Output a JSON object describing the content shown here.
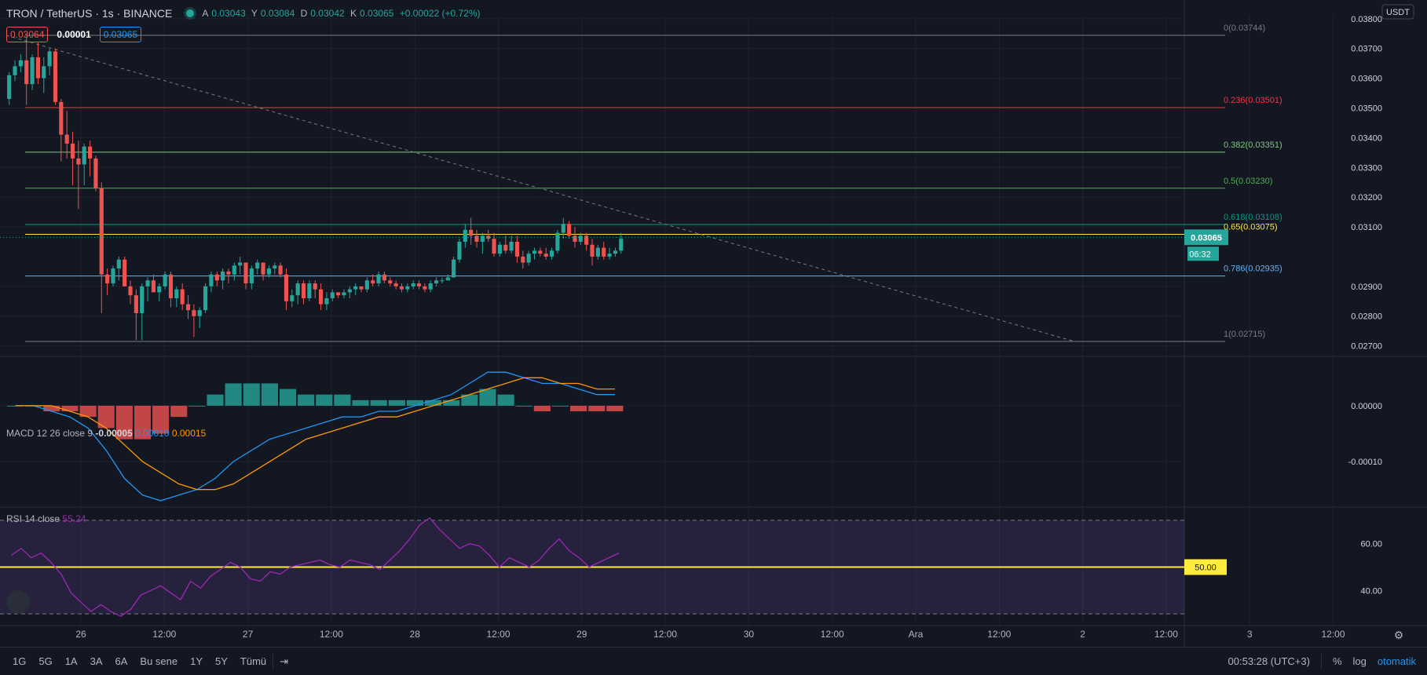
{
  "header": {
    "symbol": "TRON / TetherUS · 1s · BINANCE",
    "ohlc": {
      "o_label": "A",
      "o": "0.03043",
      "h_label": "Y",
      "h": "0.03084",
      "l_label": "D",
      "l": "0.03042",
      "c_label": "K",
      "c": "0.03065",
      "change": "+0.00022 (+0.72%)"
    },
    "sell": "0.03064",
    "spread": "0.00001",
    "buy": "0.03065"
  },
  "currency": "USDT",
  "last_price_label": "0.03065",
  "countdown": "06:32",
  "rsi_level_label": "50.00",
  "macd_header": {
    "name": "MACD 12 26 close 9",
    "v1": "-0.00005",
    "v2": "0.00010",
    "v3": "0.00015"
  },
  "rsi_header": {
    "name": "RSI 14 close",
    "v": "55.24"
  },
  "bottom_bar": {
    "ranges": [
      "1G",
      "5G",
      "1A",
      "3A",
      "6A",
      "Bu sene",
      "1Y",
      "5Y",
      "Tümü"
    ],
    "time": "00:53:28 (UTC+3)",
    "percent": "%",
    "log": "log",
    "auto": "otomatik"
  },
  "colors": {
    "up": "#26a69a",
    "down": "#ef5350",
    "bg": "#131722",
    "grid": "#1e222d",
    "text": "#b2b5be",
    "macd": "#2196f3",
    "signal": "#ff9800",
    "rsi": "#9c27b0",
    "yellow": "#ffeb3b"
  },
  "chart_data": [
    {
      "type": "candlestick",
      "title": "TRON / TetherUS",
      "x_ticks": [
        "26",
        "12:00",
        "27",
        "12:00",
        "28",
        "12:00",
        "29",
        "12:00",
        "30",
        "12:00",
        "Ara",
        "12:00",
        "2",
        "12:00",
        "3",
        "12:00"
      ],
      "y_ticks": [
        "0.03800",
        "0.03700",
        "0.03600",
        "0.03500",
        "0.03400",
        "0.03300",
        "0.03200",
        "0.03100",
        "0.02900",
        "0.02800",
        "0.02700"
      ],
      "ylim": [
        0.0267,
        0.0381
      ],
      "candles": [
        [
          0.0353,
          0.0362,
          0.0351,
          0.0361
        ],
        [
          0.0361,
          0.0366,
          0.0359,
          0.0364
        ],
        [
          0.0364,
          0.0368,
          0.0362,
          0.0366
        ],
        [
          0.0366,
          0.0374,
          0.0351,
          0.0358
        ],
        [
          0.0358,
          0.0368,
          0.0356,
          0.0367
        ],
        [
          0.0367,
          0.0372,
          0.0358,
          0.036
        ],
        [
          0.036,
          0.0367,
          0.0355,
          0.0364
        ],
        [
          0.0364,
          0.037,
          0.0361,
          0.0369
        ],
        [
          0.0369,
          0.037,
          0.0351,
          0.0352
        ],
        [
          0.0352,
          0.0353,
          0.0332,
          0.0341
        ],
        [
          0.0341,
          0.0349,
          0.0333,
          0.0338
        ],
        [
          0.0338,
          0.0342,
          0.0324,
          0.0333
        ],
        [
          0.0333,
          0.0339,
          0.0316,
          0.0331
        ],
        [
          0.0331,
          0.0338,
          0.0324,
          0.0337
        ],
        [
          0.0337,
          0.0339,
          0.0327,
          0.0333
        ],
        [
          0.0333,
          0.0334,
          0.0322,
          0.0323
        ],
        [
          0.0323,
          0.0325,
          0.0281,
          0.0294
        ],
        [
          0.0294,
          0.0296,
          0.0287,
          0.0291
        ],
        [
          0.0291,
          0.0297,
          0.029,
          0.0296
        ],
        [
          0.0296,
          0.03,
          0.0292,
          0.0299
        ],
        [
          0.0299,
          0.03,
          0.0291,
          0.029
        ],
        [
          0.029,
          0.0292,
          0.0284,
          0.0287
        ],
        [
          0.0287,
          0.0289,
          0.0272,
          0.0281
        ],
        [
          0.0281,
          0.0291,
          0.0272,
          0.029
        ],
        [
          0.029,
          0.0293,
          0.0285,
          0.0292
        ],
        [
          0.0292,
          0.0294,
          0.0289,
          0.0288
        ],
        [
          0.0288,
          0.0291,
          0.0285,
          0.029
        ],
        [
          0.029,
          0.0295,
          0.0289,
          0.0294
        ],
        [
          0.0294,
          0.0295,
          0.0283,
          0.0286
        ],
        [
          0.0286,
          0.029,
          0.0283,
          0.0289
        ],
        [
          0.0289,
          0.0291,
          0.0282,
          0.0284
        ],
        [
          0.0284,
          0.0287,
          0.0279,
          0.0282
        ],
        [
          0.0282,
          0.0284,
          0.0273,
          0.028
        ],
        [
          0.028,
          0.0283,
          0.0276,
          0.0282
        ],
        [
          0.0282,
          0.0291,
          0.0281,
          0.029
        ],
        [
          0.029,
          0.0295,
          0.0288,
          0.0294
        ],
        [
          0.0294,
          0.0295,
          0.029,
          0.0292
        ],
        [
          0.0292,
          0.0296,
          0.0289,
          0.0295
        ],
        [
          0.0295,
          0.0296,
          0.0291,
          0.0294
        ],
        [
          0.0294,
          0.0298,
          0.0292,
          0.0297
        ],
        [
          0.0297,
          0.03,
          0.0294,
          0.0298
        ],
        [
          0.0298,
          0.0298,
          0.0289,
          0.0291
        ],
        [
          0.0291,
          0.0297,
          0.0289,
          0.0296
        ],
        [
          0.0296,
          0.0299,
          0.0294,
          0.0298
        ],
        [
          0.0298,
          0.0298,
          0.0292,
          0.0294
        ],
        [
          0.0294,
          0.0297,
          0.0293,
          0.0296
        ],
        [
          0.0296,
          0.0298,
          0.0294,
          0.0297
        ],
        [
          0.0297,
          0.0298,
          0.0293,
          0.0294
        ],
        [
          0.0294,
          0.0296,
          0.0282,
          0.0285
        ],
        [
          0.0285,
          0.0289,
          0.0283,
          0.0287
        ],
        [
          0.0287,
          0.0292,
          0.0284,
          0.0291
        ],
        [
          0.0291,
          0.0292,
          0.0284,
          0.0286
        ],
        [
          0.0286,
          0.0292,
          0.0285,
          0.0291
        ],
        [
          0.0291,
          0.0292,
          0.0286,
          0.0289
        ],
        [
          0.0289,
          0.0291,
          0.0282,
          0.0284
        ],
        [
          0.0284,
          0.0288,
          0.0282,
          0.0286
        ],
        [
          0.0286,
          0.0289,
          0.0285,
          0.0288
        ],
        [
          0.0288,
          0.0288,
          0.0286,
          0.0287
        ],
        [
          0.0287,
          0.0289,
          0.0286,
          0.0288
        ],
        [
          0.0288,
          0.029,
          0.0286,
          0.0289
        ],
        [
          0.0289,
          0.0291,
          0.0287,
          0.029
        ],
        [
          0.029,
          0.029,
          0.0288,
          0.0289
        ],
        [
          0.0289,
          0.0293,
          0.0288,
          0.0292
        ],
        [
          0.0292,
          0.0294,
          0.029,
          0.0291
        ],
        [
          0.0291,
          0.0295,
          0.029,
          0.0294
        ],
        [
          0.0294,
          0.0295,
          0.0291,
          0.0292
        ],
        [
          0.0292,
          0.0293,
          0.029,
          0.0291
        ],
        [
          0.0291,
          0.0292,
          0.0289,
          0.029
        ],
        [
          0.029,
          0.0291,
          0.0288,
          0.0289
        ],
        [
          0.0289,
          0.0291,
          0.0288,
          0.029
        ],
        [
          0.029,
          0.0292,
          0.0289,
          0.0291
        ],
        [
          0.0291,
          0.0292,
          0.0289,
          0.029
        ],
        [
          0.029,
          0.0291,
          0.0288,
          0.0289
        ],
        [
          0.0289,
          0.0292,
          0.0288,
          0.0291
        ],
        [
          0.0291,
          0.0293,
          0.029,
          0.0292
        ],
        [
          0.0292,
          0.0293,
          0.0291,
          0.0292
        ],
        [
          0.0292,
          0.0294,
          0.0292,
          0.0293
        ],
        [
          0.0293,
          0.03,
          0.0293,
          0.0299
        ],
        [
          0.0299,
          0.0306,
          0.0298,
          0.0305
        ],
        [
          0.0305,
          0.0311,
          0.0303,
          0.0309
        ],
        [
          0.0309,
          0.0313,
          0.0304,
          0.0307
        ],
        [
          0.0307,
          0.0309,
          0.0303,
          0.0305
        ],
        [
          0.0305,
          0.0308,
          0.0301,
          0.0307
        ],
        [
          0.0307,
          0.0309,
          0.0305,
          0.0306
        ],
        [
          0.0306,
          0.0308,
          0.03,
          0.0301
        ],
        [
          0.0301,
          0.0305,
          0.03,
          0.0304
        ],
        [
          0.0304,
          0.0307,
          0.0301,
          0.0302
        ],
        [
          0.0302,
          0.0307,
          0.0301,
          0.0305
        ],
        [
          0.0305,
          0.0307,
          0.0298,
          0.03
        ],
        [
          0.03,
          0.0302,
          0.0296,
          0.0298
        ],
        [
          0.0298,
          0.0302,
          0.0297,
          0.0301
        ],
        [
          0.0301,
          0.0303,
          0.0299,
          0.0302
        ],
        [
          0.0302,
          0.0303,
          0.03,
          0.0301
        ],
        [
          0.0301,
          0.0303,
          0.0299,
          0.03
        ],
        [
          0.03,
          0.0303,
          0.0299,
          0.0302
        ],
        [
          0.0302,
          0.0309,
          0.0301,
          0.0308
        ],
        [
          0.0308,
          0.0313,
          0.0306,
          0.0311
        ],
        [
          0.0311,
          0.0312,
          0.0306,
          0.0307
        ],
        [
          0.0307,
          0.031,
          0.0303,
          0.0305
        ],
        [
          0.0305,
          0.0308,
          0.0304,
          0.0307
        ],
        [
          0.0307,
          0.0308,
          0.0302,
          0.0304
        ],
        [
          0.0304,
          0.0306,
          0.0297,
          0.03
        ],
        [
          0.03,
          0.0304,
          0.0299,
          0.0303
        ],
        [
          0.0303,
          0.0305,
          0.0299,
          0.03
        ],
        [
          0.03,
          0.0303,
          0.0299,
          0.0301
        ],
        [
          0.0301,
          0.0303,
          0.03,
          0.0302
        ],
        [
          0.0302,
          0.0308,
          0.0301,
          0.0306
        ]
      ],
      "fib_levels": [
        {
          "label": "0(0.03744)",
          "value": 0.03744,
          "color": "#787b86"
        },
        {
          "label": "0.236(0.03501)",
          "value": 0.03501,
          "color": "#f23645"
        },
        {
          "label": "0.382(0.03351)",
          "value": 0.03351,
          "color": "#81c784"
        },
        {
          "label": "0.5(0.03230)",
          "value": 0.0323,
          "color": "#4caf50"
        },
        {
          "label": "0.618(0.03108)",
          "value": 0.03108,
          "color": "#089981"
        },
        {
          "label": "0.65(0.03075)",
          "value": 0.03075,
          "color": "#ffeb3b"
        },
        {
          "label": "0.786(0.02935)",
          "value": 0.02935,
          "color": "#64b5f6"
        },
        {
          "label": "1(0.02715)",
          "value": 0.02715,
          "color": "#787b86"
        }
      ],
      "trendline": {
        "from": [
          0,
          0.03744
        ],
        "to": [
          185,
          0.02715
        ]
      },
      "last_price": 0.03065
    },
    {
      "type": "line",
      "title": "MACD 12 26 close 9",
      "y_ticks": [
        "0.00000",
        "-0.00010"
      ],
      "ylim": [
        -0.00018,
        8e-05
      ],
      "series": [
        {
          "name": "MACD",
          "values": [
            0,
            0,
            -1e-05,
            -2e-05,
            -4e-05,
            -8e-05,
            -0.00013,
            -0.00016,
            -0.00017,
            -0.00016,
            -0.00015,
            -0.00013,
            -0.0001,
            -8e-05,
            -6e-05,
            -5e-05,
            -4e-05,
            -3e-05,
            -2e-05,
            -2e-05,
            -1e-05,
            -1e-05,
            0,
            1e-05,
            2e-05,
            4e-05,
            6e-05,
            6e-05,
            5e-05,
            4e-05,
            4e-05,
            3e-05,
            2e-05,
            2e-05
          ]
        },
        {
          "name": "Signal",
          "values": [
            0,
            0,
            0,
            -1e-05,
            -2e-05,
            -4e-05,
            -7e-05,
            -0.0001,
            -0.00012,
            -0.00014,
            -0.00015,
            -0.00015,
            -0.00014,
            -0.00012,
            -0.0001,
            -8e-05,
            -6e-05,
            -5e-05,
            -4e-05,
            -3e-05,
            -2e-05,
            -2e-05,
            -1e-05,
            0,
            1e-05,
            2e-05,
            3e-05,
            4e-05,
            5e-05,
            5e-05,
            4e-05,
            4e-05,
            3e-05,
            3e-05
          ]
        }
      ]
    },
    {
      "type": "line",
      "title": "RSI 14 close",
      "y_ticks": [
        "60.00",
        "40.00"
      ],
      "ylim": [
        25,
        75
      ],
      "band": [
        30,
        70
      ],
      "midline": 50,
      "series": [
        {
          "name": "RSI",
          "values": [
            55,
            58,
            54,
            56,
            52,
            47,
            39,
            35,
            31,
            34,
            31,
            29,
            32,
            38,
            40,
            42,
            39,
            36,
            44,
            41,
            46,
            49,
            52,
            50,
            45,
            44,
            48,
            47,
            50,
            51,
            52,
            53,
            51,
            50,
            53,
            52,
            51,
            49,
            53,
            57,
            62,
            68,
            71,
            66,
            62,
            58,
            60,
            59,
            55,
            50,
            54,
            52,
            50,
            53,
            58,
            62,
            57,
            54,
            50,
            52,
            54,
            56
          ]
        }
      ]
    }
  ]
}
